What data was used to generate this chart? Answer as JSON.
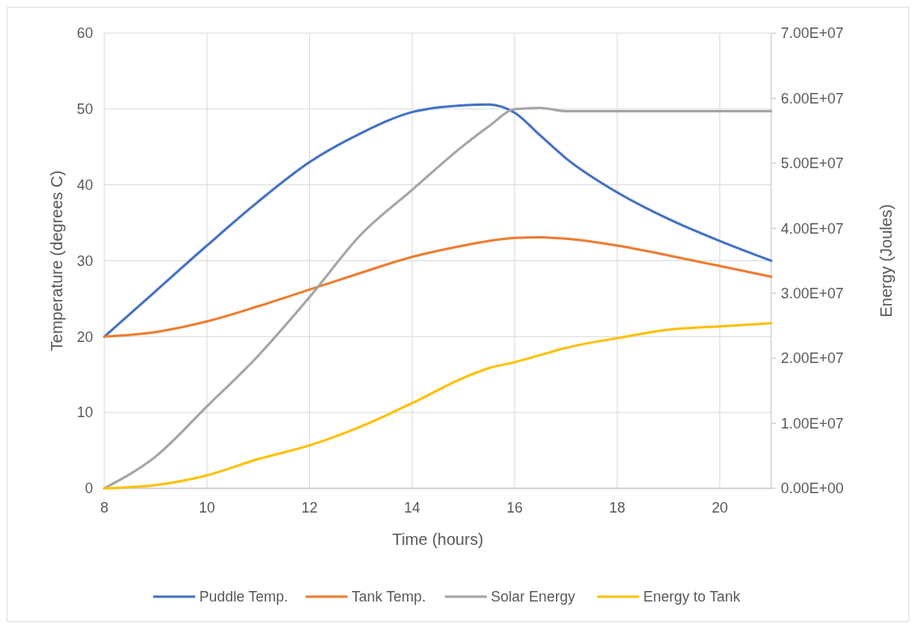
{
  "chart_data": {
    "type": "line",
    "xlabel": "Time (hours)",
    "ylabel": "Temperature (degrees C)",
    "y2label": "Energy (Joules)",
    "x": [
      8,
      9,
      10,
      11,
      12,
      13,
      14,
      15,
      15.5,
      16,
      16.5,
      17,
      18,
      19,
      20,
      21
    ],
    "series": [
      {
        "name": "Puddle Temp.",
        "color": "#4472c4",
        "values": [
          20,
          26,
          32,
          37.8,
          43,
          46.8,
          49.6,
          50.5,
          50.6,
          49.5,
          46.5,
          43.5,
          39,
          35.5,
          32.6,
          30
        ]
      },
      {
        "name": "Tank Temp.",
        "color": "#ed7d31",
        "values": [
          20,
          20.6,
          22,
          24,
          26.2,
          28.4,
          30.5,
          32,
          32.6,
          33,
          33.1,
          32.9,
          32,
          30.7,
          29.3,
          27.9
        ]
      },
      {
        "name": "Solar Energy",
        "color": "#a5a5a5",
        "axis": "y2",
        "values": [
          0,
          4900000,
          12600000,
          20400000,
          29400000,
          39000000,
          45900000,
          52700000,
          55700000,
          58300000,
          58500000,
          58000000,
          58000000,
          58000000,
          58000000,
          58000000
        ]
      },
      {
        "name": "Energy to Tank",
        "color": "#ffc000",
        "axis": "y2",
        "values": [
          0,
          500000,
          2000000,
          4500000,
          6600000,
          9500000,
          13100000,
          17000000,
          18500000,
          19400000,
          20500000,
          21600000,
          23100000,
          24400000,
          24900000,
          25400000
        ]
      }
    ],
    "xlim": [
      8,
      21
    ],
    "xticks": [
      8,
      10,
      12,
      14,
      16,
      18,
      20
    ],
    "ylim": [
      0,
      60
    ],
    "yticks": [
      0,
      10,
      20,
      30,
      40,
      50,
      60
    ],
    "y2lim": [
      0,
      70000000
    ],
    "y2ticks": [
      {
        "value": 0,
        "label": "0.00E+00"
      },
      {
        "value": 10000000,
        "label": "1.00E+07"
      },
      {
        "value": 20000000,
        "label": "2.00E+07"
      },
      {
        "value": 30000000,
        "label": "3.00E+07"
      },
      {
        "value": 40000000,
        "label": "4.00E+07"
      },
      {
        "value": 50000000,
        "label": "5.00E+07"
      },
      {
        "value": 60000000,
        "label": "6.00E+07"
      },
      {
        "value": 70000000,
        "label": "7.00E+07"
      }
    ],
    "grid": true,
    "legend": "bottom",
    "marker": "none",
    "line_style": "solid"
  }
}
